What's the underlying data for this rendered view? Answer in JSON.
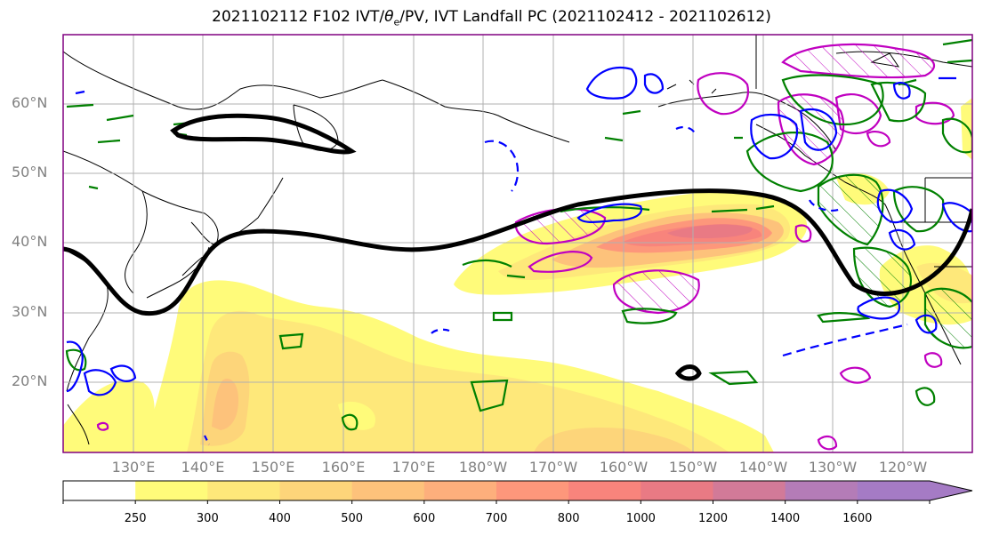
{
  "title": {
    "run": "2021102112 F102 IVT/",
    "theta": "θ",
    "theta_sub": "e",
    "rest": "/PV, IVT Landfall PC (2021102412 - 2021102612)"
  },
  "lat_labels": [
    "60°N",
    "50°N",
    "40°N",
    "30°N",
    "20°N"
  ],
  "lon_labels": [
    "130°E",
    "140°E",
    "150°E",
    "160°E",
    "170°E",
    "180°W",
    "170°W",
    "160°W",
    "150°W",
    "140°W",
    "130°W",
    "120°W"
  ],
  "colorbar": {
    "levels": [
      "250",
      "300",
      "400",
      "500",
      "600",
      "700",
      "800",
      "1000",
      "1200",
      "1400",
      "1600"
    ],
    "colors": [
      "#ffffff",
      "#fffb7a",
      "#fee87a",
      "#fdd57a",
      "#fdc27b",
      "#fdaf7c",
      "#fd977b",
      "#f8847c",
      "#e97a84",
      "#d27a98",
      "#b47cb7",
      "#a57bc5"
    ]
  },
  "contour_colors": {
    "pc_line": "#000000",
    "theta_e": "#008000",
    "pv": "#0000ff",
    "hatched": "#c000c0"
  }
}
